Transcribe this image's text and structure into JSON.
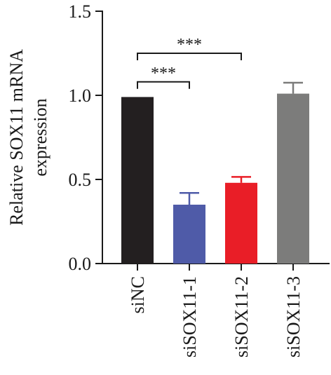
{
  "chart_data": {
    "type": "bar",
    "title": "",
    "xlabel": "",
    "ylabel": "Relative SOX11 mRNA expression",
    "ylabel_lines": [
      "Relative SOX11 mRNA",
      "expression"
    ],
    "ylim": [
      0.0,
      1.5
    ],
    "yticks": [
      0.0,
      0.5,
      1.0,
      1.5
    ],
    "ytick_labels": [
      "0.0",
      "0.5",
      "1.0",
      "1.5"
    ],
    "categories": [
      "siNC",
      "siSOX11-1",
      "siSOX11-2",
      "siSOX11-3"
    ],
    "values": [
      0.99,
      0.35,
      0.48,
      1.01
    ],
    "errors": [
      0.0,
      0.07,
      0.035,
      0.065
    ],
    "colors": [
      "#231f20",
      "#4f5ba8",
      "#e91e27",
      "#7c7c7b"
    ],
    "grid": false,
    "legend": "none",
    "significance": [
      {
        "from": 0,
        "to": 1,
        "label": "***",
        "level": 1.08
      },
      {
        "from": 0,
        "to": 2,
        "label": "***",
        "level": 1.25
      }
    ]
  }
}
